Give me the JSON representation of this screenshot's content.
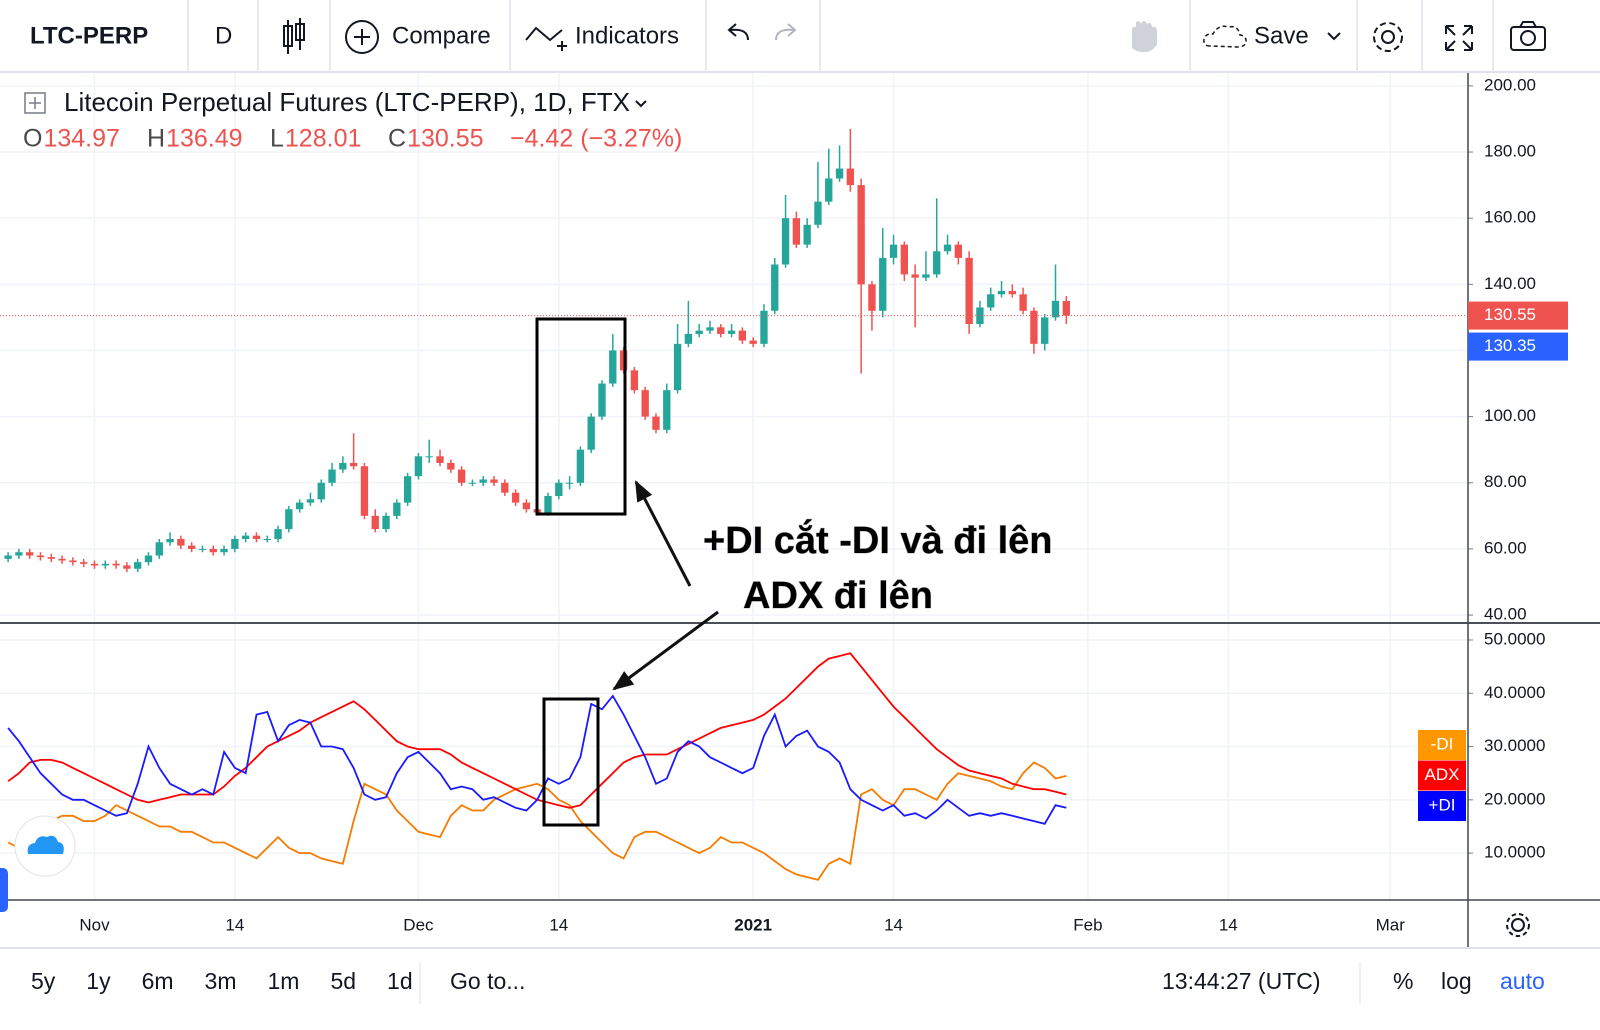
{
  "ui": {
    "toolbar": {
      "symbol": "LTC-PERP",
      "interval": "D",
      "compare": "Compare",
      "indicators": "Indicators",
      "save": "Save"
    },
    "bottom": {
      "ranges": [
        "5y",
        "1y",
        "6m",
        "3m",
        "1m",
        "5d",
        "1d"
      ],
      "goto": "Go to...",
      "clock": "13:44:27 (UTC)",
      "percent": "%",
      "log": "log",
      "auto": "auto"
    }
  },
  "chart_data": [
    {
      "type": "candlestick",
      "title": "Litecoin Perpetual Futures (LTC-PERP), 1D, FTX",
      "ohlc_prefixes": [
        "O",
        "H",
        "L",
        "C"
      ],
      "change_label": "−4.42 (−3.27%)",
      "up_color": "#26a69a",
      "down_color": "#ef5350",
      "xlim": [
        -0.75,
        135.2
      ],
      "ylim": [
        37.9,
        204.2
      ],
      "yticks": [
        {
          "value": 40,
          "label": "40.00"
        },
        {
          "value": 60,
          "label": "60.00"
        },
        {
          "value": 80,
          "label": "80.00"
        },
        {
          "value": 100,
          "label": "100.00"
        },
        {
          "value": 120,
          "label": "120.00"
        },
        {
          "value": 140,
          "label": "140.00"
        },
        {
          "value": 160,
          "label": "160.00"
        },
        {
          "value": 180,
          "label": "180.00"
        },
        {
          "value": 200,
          "label": "200.00"
        }
      ],
      "grid": true,
      "price_labels": [
        {
          "value": 130.55,
          "color": "#ef5350"
        },
        {
          "value": 130.35,
          "color": "#2962ff"
        }
      ],
      "open": [
        57,
        58,
        59,
        58,
        57.5,
        57,
        56.5,
        56,
        55.5,
        55,
        55.5,
        55,
        54,
        56,
        58,
        62,
        63,
        61,
        60,
        60,
        59,
        60,
        63,
        64,
        63,
        63,
        66,
        72,
        74,
        75,
        80,
        84,
        86,
        85,
        70,
        66,
        70,
        74,
        82,
        88,
        88,
        86,
        84,
        80,
        80,
        81,
        80,
        77,
        74,
        72,
        71,
        76,
        80,
        80,
        90,
        100,
        110,
        120,
        114,
        108,
        100,
        96,
        108,
        122,
        125,
        126,
        127,
        125,
        126,
        123,
        122,
        132,
        146,
        160,
        152,
        158,
        165,
        172,
        175,
        170,
        140,
        132,
        148,
        152,
        143,
        142,
        143,
        150,
        152,
        148,
        128,
        133,
        137,
        138,
        137,
        132,
        122,
        130,
        134.97
      ],
      "high": [
        59,
        60,
        60,
        59,
        58.5,
        58,
        57.5,
        57,
        56.5,
        56.5,
        56.5,
        56,
        57,
        59,
        63,
        65,
        64,
        62,
        61,
        61,
        61,
        64,
        65,
        65,
        64,
        67,
        73,
        75,
        77,
        81,
        86,
        88,
        95,
        86,
        72,
        71,
        75,
        83,
        89,
        93,
        90,
        87,
        85,
        81,
        82,
        82,
        81,
        78,
        75,
        73,
        77,
        81,
        82,
        91,
        101,
        111,
        125,
        121,
        115,
        109,
        101,
        110,
        128,
        135,
        128,
        129,
        128,
        128,
        127,
        124,
        134,
        148,
        167,
        162,
        160,
        177,
        181,
        182,
        187,
        172,
        141,
        157,
        155,
        153,
        146,
        150,
        166,
        155,
        153,
        150,
        135,
        139,
        141,
        140,
        139,
        133,
        131,
        146,
        136.49
      ],
      "low": [
        56,
        57,
        57,
        56.5,
        56,
        55.5,
        55,
        54.5,
        54,
        54,
        54,
        53,
        53,
        55,
        57,
        61,
        60,
        59,
        59,
        58,
        58,
        59,
        62,
        62,
        62,
        62,
        65,
        71,
        73,
        74,
        79,
        83,
        84,
        69,
        65,
        65,
        69,
        73,
        81,
        86,
        85,
        83,
        79,
        79,
        79,
        79,
        76,
        73,
        71,
        70,
        70,
        75,
        78,
        79,
        89,
        99,
        109,
        113,
        107,
        99,
        95,
        95,
        107,
        121,
        124,
        125,
        124,
        124,
        122,
        121,
        121,
        131,
        145,
        151,
        151,
        157,
        164,
        171,
        168,
        113,
        126,
        130,
        146,
        141,
        127,
        141,
        142,
        149,
        146,
        125,
        127,
        132,
        136,
        136,
        131,
        119,
        120,
        129,
        128.01
      ],
      "close": [
        58,
        59,
        58,
        57.5,
        57,
        56.5,
        56,
        55.5,
        55,
        55.5,
        55,
        54,
        56,
        58,
        62,
        63,
        61,
        60,
        60,
        59,
        60,
        63,
        64,
        63,
        63,
        66,
        72,
        74,
        75,
        80,
        84,
        86,
        85,
        70,
        66,
        70,
        74,
        82,
        88,
        88,
        86,
        84,
        80,
        80,
        81,
        80,
        77,
        74,
        72,
        71,
        76,
        80,
        80,
        90,
        100,
        110,
        120,
        114,
        108,
        100,
        96,
        108,
        122,
        125,
        126,
        127,
        125,
        126,
        123,
        122,
        132,
        146,
        160,
        152,
        158,
        165,
        172,
        175,
        170,
        140,
        132,
        148,
        152,
        143,
        142,
        143,
        150,
        152,
        148,
        128,
        133,
        137,
        138,
        137,
        132,
        122,
        130,
        135,
        130.55
      ]
    },
    {
      "type": "line",
      "xlim": [
        -0.75,
        135.2
      ],
      "xticks": [
        {
          "value": 8,
          "label": "Nov"
        },
        {
          "value": 21,
          "label": "14"
        },
        {
          "value": 38,
          "label": "Dec"
        },
        {
          "value": 51,
          "label": "14"
        },
        {
          "value": 69,
          "label": "2021",
          "bold": true
        },
        {
          "value": 82,
          "label": "14"
        },
        {
          "value": 100,
          "label": "Feb"
        },
        {
          "value": 113,
          "label": "14"
        },
        {
          "value": 128,
          "label": "Mar"
        }
      ],
      "ylim": [
        1.2,
        53
      ],
      "yticks": [
        {
          "value": 10,
          "label": "10.0000"
        },
        {
          "value": 20,
          "label": "20.0000"
        },
        {
          "value": 30,
          "label": "30.0000"
        },
        {
          "value": 40,
          "label": "40.0000"
        },
        {
          "value": 50,
          "label": "50.0000"
        }
      ],
      "grid": true,
      "annotations": [
        "+DI cắt -DI và đi lên",
        "ADX đi lên"
      ],
      "series": [
        {
          "name": "-DI",
          "color": "#f57c00",
          "badge_color": "#ff9800",
          "values": [
            12,
            11,
            13,
            15,
            16,
            17,
            17,
            16,
            16,
            17,
            19,
            18,
            17,
            16,
            15,
            15,
            14,
            14,
            13,
            12,
            12,
            11,
            10,
            9,
            11,
            13,
            11,
            10,
            10,
            9,
            8.5,
            8,
            16,
            23,
            22,
            21,
            18,
            16,
            14,
            13.5,
            13,
            17,
            19,
            18,
            18,
            20,
            21,
            22,
            22.5,
            23,
            22,
            20,
            19,
            16,
            14,
            12,
            10,
            9,
            13,
            14,
            14,
            13,
            12,
            11,
            10,
            11,
            13,
            12,
            12,
            11,
            10,
            8.5,
            7,
            6,
            5.5,
            5,
            8,
            9,
            8,
            21,
            22,
            20,
            19,
            22,
            22,
            21,
            20,
            23,
            25,
            24.5,
            24,
            23.5,
            22.5,
            22,
            25,
            27,
            26,
            24,
            24.5
          ]
        },
        {
          "name": "ADX",
          "color": "#ff0000",
          "badge_color": "#ff0000",
          "values": [
            23.5,
            25,
            27,
            27.5,
            27.5,
            27,
            26,
            25,
            24,
            23,
            22,
            21,
            20,
            19.5,
            20,
            20.5,
            21,
            21,
            21,
            21,
            22.5,
            24.5,
            26,
            28,
            30,
            31,
            32,
            33,
            34.5,
            35.5,
            36.5,
            37.5,
            38.5,
            37,
            35,
            33,
            31,
            30,
            29.5,
            29.5,
            29.5,
            28.5,
            27,
            26,
            25,
            24,
            23,
            22,
            21,
            20,
            19.5,
            19,
            18.5,
            19,
            21,
            23,
            25,
            27,
            28,
            28.5,
            28.5,
            28.5,
            29.5,
            30.5,
            31.5,
            32.5,
            33.5,
            34,
            34.5,
            35,
            36,
            37.5,
            39,
            41,
            43,
            45,
            46.5,
            47,
            47.5,
            45,
            42.5,
            40,
            37.5,
            35.5,
            33.5,
            31.5,
            29.5,
            28,
            26.5,
            25.5,
            25,
            24.5,
            24,
            23,
            22.5,
            22,
            22,
            21.5,
            21
          ]
        },
        {
          "name": "+DI",
          "color": "#1a1aff",
          "badge_color": "#0000ff",
          "values": [
            33.5,
            31,
            28,
            25,
            23,
            21,
            20,
            20,
            19,
            18,
            17,
            17.5,
            23,
            30,
            26,
            23,
            22,
            21,
            22,
            21,
            29,
            26,
            25,
            36,
            36.5,
            31,
            34,
            35,
            34.5,
            30,
            30,
            29.5,
            26,
            21,
            20,
            20.5,
            25,
            28,
            29,
            27,
            25,
            22,
            22.5,
            22,
            20,
            20.5,
            19.5,
            18.5,
            18,
            20,
            24,
            23,
            24,
            28,
            38,
            37,
            39.5,
            36,
            32,
            28,
            23,
            24,
            29,
            31,
            30,
            28,
            27,
            26,
            25,
            26,
            32,
            36,
            30,
            32,
            33,
            30,
            29,
            27,
            22,
            20,
            19,
            18,
            19,
            17,
            17.5,
            16.5,
            18,
            20,
            18.5,
            17,
            17.5,
            17,
            17.5,
            17,
            16.5,
            16,
            15.5,
            19,
            18.5
          ]
        }
      ]
    }
  ]
}
